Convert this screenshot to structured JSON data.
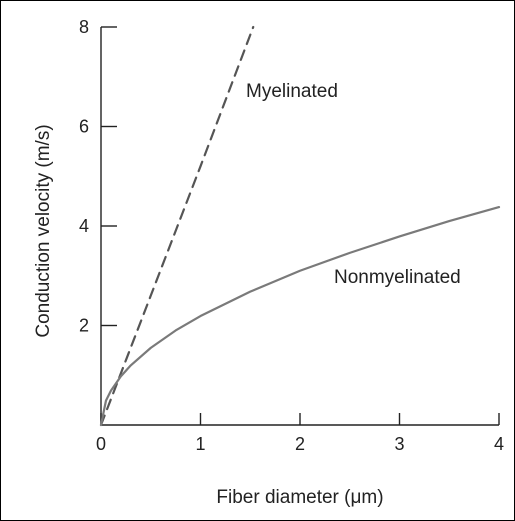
{
  "chart_data": {
    "type": "line",
    "xlabel": "Fiber diameter (μm)",
    "ylabel": "Conduction velocity (m/s)",
    "xlim": [
      0,
      4
    ],
    "ylim": [
      0,
      8
    ],
    "x_ticks": [
      "0",
      "1",
      "2",
      "3",
      "4"
    ],
    "y_ticks": [
      "2",
      "4",
      "6",
      "8"
    ],
    "series": [
      {
        "name": "Myelinated",
        "line_style": "dashed",
        "color": "#555555",
        "x": [
          0,
          0.5,
          1.0,
          1.53
        ],
        "y": [
          0,
          2.6,
          5.2,
          8.0
        ]
      },
      {
        "name": "Nonmyelinated",
        "line_style": "solid",
        "color": "#7a7a7a",
        "x": [
          0,
          0.05,
          0.1,
          0.2,
          0.3,
          0.5,
          0.75,
          1.0,
          1.5,
          2.0,
          2.5,
          3.0,
          3.5,
          4.0
        ],
        "y": [
          0,
          0.49,
          0.69,
          0.98,
          1.2,
          1.55,
          1.9,
          2.19,
          2.68,
          3.1,
          3.46,
          3.79,
          4.1,
          4.38
        ]
      }
    ],
    "grid": false,
    "legend": "none"
  }
}
